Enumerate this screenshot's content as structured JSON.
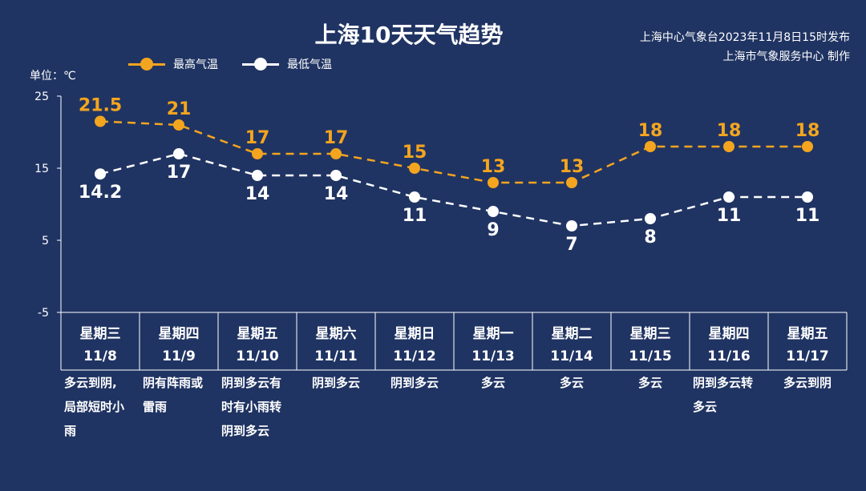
{
  "title": "上海10天天气趋势",
  "source": {
    "line1": "上海中心气象台2023年11月8日15时发布",
    "line2": "上海市气象服务中心 制作"
  },
  "unit_label": "单位：℃",
  "colors": {
    "background": "#203463",
    "high": "#f4a51f",
    "low": "#ffffff",
    "axis": "#ffffff",
    "weather_text": "#ffffff"
  },
  "chart_data": {
    "type": "line",
    "title": "上海10天天气趋势",
    "ylabel": "单位：℃",
    "ylim": [
      -5,
      25
    ],
    "yticks": [
      25,
      15,
      5,
      -5
    ],
    "legend_position": "top-left",
    "grid": false,
    "categories": [
      {
        "weekday": "星期三",
        "date": "11/8"
      },
      {
        "weekday": "星期四",
        "date": "11/9"
      },
      {
        "weekday": "星期五",
        "date": "11/10"
      },
      {
        "weekday": "星期六",
        "date": "11/11"
      },
      {
        "weekday": "星期日",
        "date": "11/12"
      },
      {
        "weekday": "星期一",
        "date": "11/13"
      },
      {
        "weekday": "星期二",
        "date": "11/14"
      },
      {
        "weekday": "星期三",
        "date": "11/15"
      },
      {
        "weekday": "星期四",
        "date": "11/16"
      },
      {
        "weekday": "星期五",
        "date": "11/17"
      }
    ],
    "series": [
      {
        "name": "最高气温",
        "color": "#f4a51f",
        "values": [
          21.5,
          21,
          17,
          17,
          15,
          13,
          13,
          18,
          18,
          18
        ],
        "labels": [
          "21.5",
          "21",
          "17",
          "17",
          "15",
          "13",
          "13",
          "18",
          "18",
          "18"
        ]
      },
      {
        "name": "最低气温",
        "color": "#ffffff",
        "values": [
          14.2,
          17,
          14,
          14,
          11,
          9,
          7,
          8,
          11,
          11
        ],
        "labels": [
          "14.2",
          "17",
          "14",
          "14",
          "11",
          "9",
          "7",
          "8",
          "11",
          "11"
        ]
      }
    ],
    "weather": [
      [
        "多云到阴,",
        "局部短时小",
        "雨"
      ],
      [
        "阴有阵雨或",
        "雷雨"
      ],
      [
        "阴到多云有",
        "时有小雨转",
        "阴到多云"
      ],
      [
        "阴到多云"
      ],
      [
        "阴到多云"
      ],
      [
        "多云"
      ],
      [
        "多云"
      ],
      [
        "多云"
      ],
      [
        "阴到多云转",
        "多云"
      ],
      [
        "多云到阴"
      ]
    ]
  }
}
